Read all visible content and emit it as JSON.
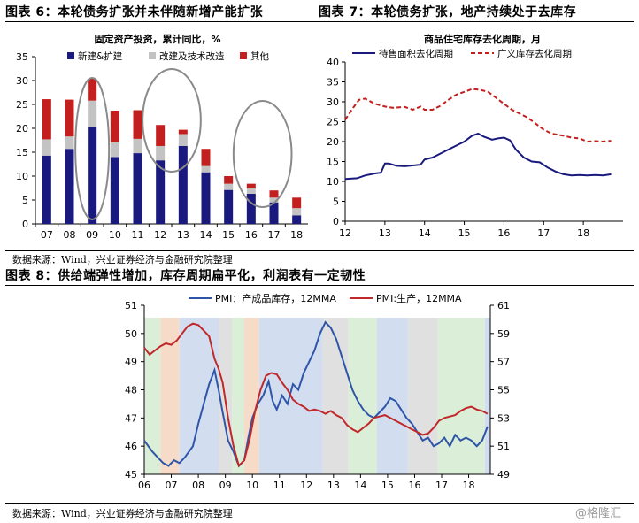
{
  "fig6": {
    "label": "图表 6：本轮债务扩张并未伴随新增产能扩张",
    "source": "数据来源：Wind，兴业证券经济与金融研究院整理"
  },
  "fig7": {
    "label": "图表 7：本轮债务扩张，地产持续处于去库存"
  },
  "fig8": {
    "label": "图表 8：供给端弹性增加，库存周期扁平化，利润表有一定韧性",
    "source": "数据来源：Wind，兴业证券经济与金融研究院整理"
  },
  "watermark": "@格隆汇",
  "chart_data": [
    {
      "type": "bar",
      "stacked": true,
      "title": "固定资产投资，累计同比，%",
      "categories": [
        "07",
        "08",
        "09",
        "10",
        "11",
        "12",
        "13",
        "14",
        "15",
        "16",
        "17",
        "18"
      ],
      "series": [
        {
          "name": "新建&扩建",
          "color": "#1a1a7e",
          "values": [
            14.3,
            15.7,
            20.2,
            14.0,
            14.8,
            13.3,
            16.3,
            10.8,
            7.1,
            6.3,
            4.5,
            1.8
          ]
        },
        {
          "name": "改建及技术改造",
          "color": "#c3c3c3",
          "values": [
            3.4,
            2.6,
            5.6,
            3.1,
            3.0,
            3.0,
            2.5,
            1.3,
            1.3,
            1.1,
            1.0,
            1.5
          ]
        },
        {
          "name": "其他",
          "color": "#c41f1f",
          "values": [
            8.4,
            7.7,
            4.6,
            6.6,
            6.0,
            4.4,
            0.9,
            3.6,
            1.6,
            1.0,
            1.5,
            2.2
          ]
        }
      ],
      "xlabel": "",
      "ylabel": "",
      "ylim": [
        0,
        35
      ],
      "yticks": [
        0,
        5,
        10,
        15,
        20,
        25,
        30,
        35
      ],
      "highlight_categories": [
        [
          "09"
        ],
        [
          "12",
          "13"
        ],
        [
          "16",
          "17"
        ]
      ],
      "grid": false,
      "legend": "top"
    },
    {
      "type": "line",
      "title": "商品住宅库存去化周期，月",
      "xlabel": "",
      "ylabel": "",
      "ylim": [
        0,
        40
      ],
      "yticks": [
        0,
        5,
        10,
        15,
        20,
        25,
        30,
        35,
        40
      ],
      "xlim": [
        2012.0,
        2019.0
      ],
      "xticks": [
        "12",
        "13",
        "14",
        "15",
        "16",
        "17",
        "18"
      ],
      "legend": "top",
      "series": [
        {
          "name": "待售面积去化周期",
          "style": "solid",
          "color": "#1a1a7e",
          "x": [
            2012.0,
            2012.3,
            2012.5,
            2012.75,
            2012.9,
            2013.0,
            2013.1,
            2013.3,
            2013.5,
            2013.7,
            2013.9,
            2014.0,
            2014.2,
            2014.4,
            2014.6,
            2014.8,
            2015.0,
            2015.2,
            2015.35,
            2015.5,
            2015.7,
            2015.85,
            2016.0,
            2016.15,
            2016.3,
            2016.5,
            2016.7,
            2016.9,
            2017.1,
            2017.3,
            2017.5,
            2017.7,
            2017.9,
            2018.1,
            2018.3,
            2018.5,
            2018.7
          ],
          "y": [
            10.6,
            10.8,
            11.5,
            12.0,
            12.2,
            14.5,
            14.5,
            13.9,
            13.8,
            14.0,
            14.2,
            15.5,
            16.0,
            17.0,
            18.0,
            19.0,
            20.0,
            21.5,
            22.0,
            21.2,
            20.5,
            20.8,
            21.0,
            20.3,
            18.0,
            16.0,
            15.0,
            14.8,
            13.5,
            12.5,
            11.8,
            11.5,
            11.6,
            11.5,
            11.6,
            11.5,
            11.8
          ]
        },
        {
          "name": "广义库存去化周期",
          "style": "dashed",
          "color": "#c41f1f",
          "x": [
            2012.0,
            2012.2,
            2012.35,
            2012.5,
            2012.75,
            2013.0,
            2013.2,
            2013.5,
            2013.7,
            2013.9,
            2014.0,
            2014.2,
            2014.4,
            2014.6,
            2014.8,
            2015.0,
            2015.2,
            2015.4,
            2015.6,
            2015.8,
            2016.0,
            2016.2,
            2016.4,
            2016.6,
            2016.8,
            2017.0,
            2017.2,
            2017.5,
            2017.7,
            2017.9,
            2018.1,
            2018.3,
            2018.5,
            2018.7
          ],
          "y": [
            25.5,
            28.5,
            30.5,
            30.8,
            29.5,
            28.8,
            28.5,
            28.7,
            28.0,
            28.8,
            28.0,
            28.0,
            29.0,
            30.5,
            31.8,
            32.5,
            33.2,
            33.0,
            32.5,
            31.0,
            29.5,
            28.0,
            27.0,
            26.0,
            24.5,
            23.0,
            22.0,
            21.5,
            21.0,
            20.8,
            20.0,
            20.1,
            20.0,
            20.2
          ]
        }
      ]
    },
    {
      "type": "line",
      "series": [
        {
          "name": "PMI：产成品库存，12MMA",
          "axis": "left",
          "color": "#2e55a8",
          "x": [
            2006.0,
            2006.3,
            2006.5,
            2006.7,
            2006.9,
            2007.1,
            2007.3,
            2007.5,
            2007.8,
            2008.0,
            2008.2,
            2008.4,
            2008.6,
            2008.75,
            2008.9,
            2009.1,
            2009.3,
            2009.5,
            2009.7,
            2009.85,
            2010.0,
            2010.2,
            2010.4,
            2010.6,
            2010.75,
            2010.9,
            2011.1,
            2011.3,
            2011.5,
            2011.7,
            2011.9,
            2012.1,
            2012.3,
            2012.5,
            2012.7,
            2012.9,
            2013.1,
            2013.3,
            2013.5,
            2013.7,
            2013.9,
            2014.1,
            2014.3,
            2014.5,
            2014.7,
            2014.9,
            2015.1,
            2015.3,
            2015.5,
            2015.7,
            2015.9,
            2016.1,
            2016.3,
            2016.5,
            2016.7,
            2016.9,
            2017.1,
            2017.3,
            2017.5,
            2017.7,
            2017.9,
            2018.1,
            2018.3,
            2018.5,
            2018.7
          ],
          "y": [
            46.2,
            45.8,
            45.6,
            45.4,
            45.3,
            45.5,
            45.4,
            45.6,
            46.0,
            46.8,
            47.5,
            48.2,
            48.7,
            48.0,
            47.2,
            46.2,
            45.8,
            45.3,
            45.5,
            46.3,
            47.0,
            47.5,
            47.8,
            48.3,
            47.6,
            47.3,
            47.8,
            47.5,
            48.2,
            48.0,
            48.6,
            49.0,
            49.4,
            50.0,
            50.4,
            50.2,
            49.8,
            49.2,
            48.6,
            48.0,
            47.6,
            47.3,
            47.1,
            47.0,
            47.2,
            47.4,
            47.7,
            47.6,
            47.3,
            47.0,
            46.8,
            46.5,
            46.2,
            46.3,
            46.0,
            46.1,
            46.3,
            46.0,
            46.4,
            46.2,
            46.3,
            46.2,
            46.0,
            46.2,
            46.7
          ]
        },
        {
          "name": "PMI:生产，12MMA",
          "axis": "right",
          "color": "#c0282a",
          "x": [
            2006.0,
            2006.2,
            2006.4,
            2006.6,
            2006.8,
            2007.0,
            2007.2,
            2007.4,
            2007.6,
            2007.8,
            2008.0,
            2008.2,
            2008.4,
            2008.5,
            2008.6,
            2008.75,
            2008.9,
            2009.1,
            2009.3,
            2009.5,
            2009.7,
            2009.9,
            2010.1,
            2010.3,
            2010.5,
            2010.7,
            2010.9,
            2011.1,
            2011.3,
            2011.5,
            2011.7,
            2011.9,
            2012.1,
            2012.3,
            2012.5,
            2012.7,
            2012.9,
            2013.1,
            2013.3,
            2013.5,
            2013.7,
            2013.9,
            2014.1,
            2014.3,
            2014.5,
            2014.7,
            2014.9,
            2015.1,
            2015.3,
            2015.5,
            2015.7,
            2015.9,
            2016.1,
            2016.3,
            2016.5,
            2016.7,
            2016.9,
            2017.1,
            2017.3,
            2017.5,
            2017.7,
            2017.9,
            2018.1,
            2018.3,
            2018.5,
            2018.7
          ],
          "y": [
            58.0,
            57.5,
            57.8,
            58.1,
            58.3,
            58.2,
            58.5,
            59.0,
            59.5,
            59.7,
            59.6,
            59.2,
            58.8,
            58.0,
            57.2,
            56.5,
            55.5,
            53.0,
            51.0,
            49.6,
            50.0,
            51.5,
            53.5,
            55.0,
            56.0,
            56.2,
            56.1,
            55.5,
            55.0,
            54.3,
            54.0,
            53.8,
            53.5,
            53.6,
            53.5,
            53.3,
            53.5,
            53.2,
            53.0,
            52.5,
            52.2,
            52.0,
            52.3,
            52.6,
            53.0,
            53.1,
            53.2,
            53.0,
            52.8,
            52.6,
            52.4,
            52.2,
            52.0,
            51.8,
            51.9,
            52.3,
            52.8,
            53.0,
            53.1,
            53.2,
            53.5,
            53.7,
            53.8,
            53.6,
            53.5,
            53.3
          ]
        }
      ],
      "xlim": [
        2006.0,
        2018.8
      ],
      "xticks": [
        "06",
        "07",
        "08",
        "09",
        "10",
        "11",
        "12",
        "13",
        "14",
        "15",
        "16",
        "17",
        "18"
      ],
      "ylim_left": [
        45,
        51
      ],
      "yticks_left": [
        45,
        46,
        47,
        48,
        49,
        50,
        51
      ],
      "ylim_right": [
        49,
        61
      ],
      "yticks_right": [
        49,
        51,
        53,
        55,
        57,
        59,
        61
      ],
      "legend": "top",
      "bands": [
        {
          "from": 2006.0,
          "to": 2006.6,
          "color": "#dbeed7"
        },
        {
          "from": 2006.6,
          "to": 2007.3,
          "color": "#f7dbc9"
        },
        {
          "from": 2007.3,
          "to": 2008.75,
          "color": "#d2ddf0"
        },
        {
          "from": 2008.75,
          "to": 2009.25,
          "color": "#e0e0e0"
        },
        {
          "from": 2009.25,
          "to": 2009.7,
          "color": "#dbeed7"
        },
        {
          "from": 2009.7,
          "to": 2010.25,
          "color": "#f7dbc9"
        },
        {
          "from": 2010.25,
          "to": 2012.6,
          "color": "#d2ddf0"
        },
        {
          "from": 2012.6,
          "to": 2013.55,
          "color": "#e0e0e0"
        },
        {
          "from": 2013.55,
          "to": 2014.6,
          "color": "#dbeed7"
        },
        {
          "from": 2014.6,
          "to": 2015.75,
          "color": "#d2ddf0"
        },
        {
          "from": 2015.75,
          "to": 2016.85,
          "color": "#e0e0e0"
        },
        {
          "from": 2016.85,
          "to": 2018.6,
          "color": "#dbeed7"
        },
        {
          "from": 2018.6,
          "to": 2018.8,
          "color": "#d2ddf0"
        }
      ]
    }
  ]
}
